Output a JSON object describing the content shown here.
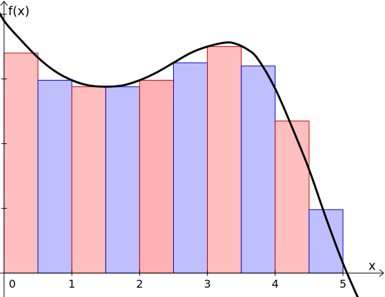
{
  "chart_data": {
    "type": "bar",
    "title": "",
    "xlabel": "x",
    "ylabel": "f(x)",
    "xlim": [
      -0.06,
      5.62
    ],
    "ylim": [
      -0.37,
      4.22
    ],
    "grid": false,
    "x_ticks": [
      "0",
      "1",
      "2",
      "3",
      "4",
      "5"
    ],
    "y_ticks": [
      "0",
      "1",
      "2",
      "3",
      "4"
    ],
    "bars": [
      {
        "x0": 0.0,
        "x1": 0.5,
        "height": 3.4,
        "fill": "#ffbfbf",
        "stroke": "#cc0000"
      },
      {
        "x0": 0.5,
        "x1": 1.0,
        "height": 2.98,
        "fill": "#bfbfff",
        "stroke": "#0000cc"
      },
      {
        "x0": 1.0,
        "x1": 1.5,
        "height": 2.88,
        "fill": "#ffbfbf",
        "stroke": "#cc0000"
      },
      {
        "x0": 1.5,
        "x1": 2.0,
        "height": 2.88,
        "fill": "#bfbfff",
        "stroke": "#0000cc"
      },
      {
        "x0": 2.0,
        "x1": 2.5,
        "height": 2.98,
        "fill": "#ffb0b0",
        "stroke": "#cc0000"
      },
      {
        "x0": 2.5,
        "x1": 3.0,
        "height": 3.25,
        "fill": "#bfbfff",
        "stroke": "#0000cc"
      },
      {
        "x0": 3.0,
        "x1": 3.5,
        "height": 3.5,
        "fill": "#ffbfbf",
        "stroke": "#cc0000"
      },
      {
        "x0": 3.5,
        "x1": 4.0,
        "height": 3.2,
        "fill": "#bfbfff",
        "stroke": "#0000cc"
      },
      {
        "x0": 4.0,
        "x1": 4.5,
        "height": 2.35,
        "fill": "#ffbfbf",
        "stroke": "#cc0000"
      },
      {
        "x0": 4.5,
        "x1": 5.0,
        "height": 0.98,
        "fill": "#bfbfff",
        "stroke": "#0000cc"
      }
    ],
    "curve": {
      "color": "#000000",
      "points": [
        [
          -0.2,
          4.28
        ],
        [
          0.0,
          3.9
        ],
        [
          0.25,
          3.6
        ],
        [
          0.5,
          3.33
        ],
        [
          0.75,
          3.12
        ],
        [
          1.0,
          2.98
        ],
        [
          1.25,
          2.9
        ],
        [
          1.5,
          2.88
        ],
        [
          1.75,
          2.9
        ],
        [
          2.0,
          2.98
        ],
        [
          2.25,
          3.1
        ],
        [
          2.5,
          3.25
        ],
        [
          2.75,
          3.4
        ],
        [
          3.0,
          3.5
        ],
        [
          3.25,
          3.56
        ],
        [
          3.4,
          3.55
        ],
        [
          3.6,
          3.45
        ],
        [
          3.75,
          3.3
        ],
        [
          4.0,
          2.85
        ],
        [
          4.25,
          2.25
        ],
        [
          4.5,
          1.6
        ],
        [
          4.75,
          0.85
        ],
        [
          5.0,
          0.15
        ],
        [
          5.25,
          -0.45
        ]
      ]
    }
  }
}
